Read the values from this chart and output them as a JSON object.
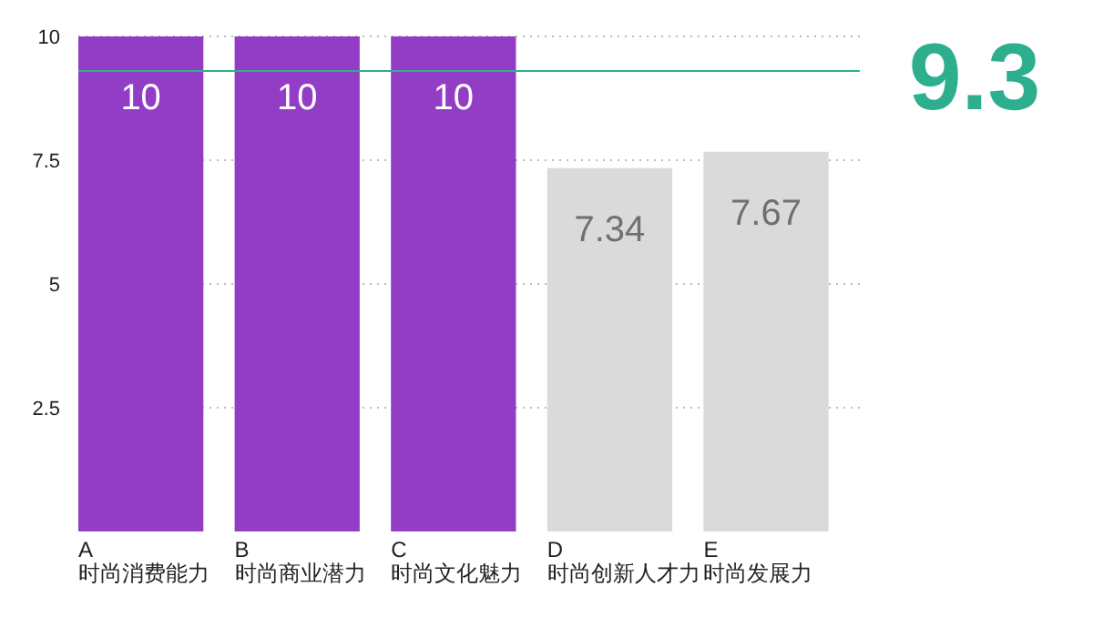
{
  "chart_data": {
    "type": "bar",
    "categories": [
      "A\n时尚消费能力",
      "B\n时尚商业潜力",
      "C\n时尚文化魅力",
      "D\n时尚创新人才力",
      "E\n时尚发展力"
    ],
    "values": [
      10,
      10,
      10,
      7.34,
      7.67
    ],
    "colors": [
      "#933dc6",
      "#933dc6",
      "#933dc6",
      "#dadada",
      "#dadada"
    ],
    "ylim": [
      0,
      10
    ],
    "yticks": [
      2.5,
      5,
      7.5,
      10
    ],
    "grid": "y",
    "data_labels": true,
    "ref_lines": [
      {
        "axis": "y",
        "value": 9.3,
        "label": "9.3",
        "color": "#2daf8e"
      }
    ]
  }
}
